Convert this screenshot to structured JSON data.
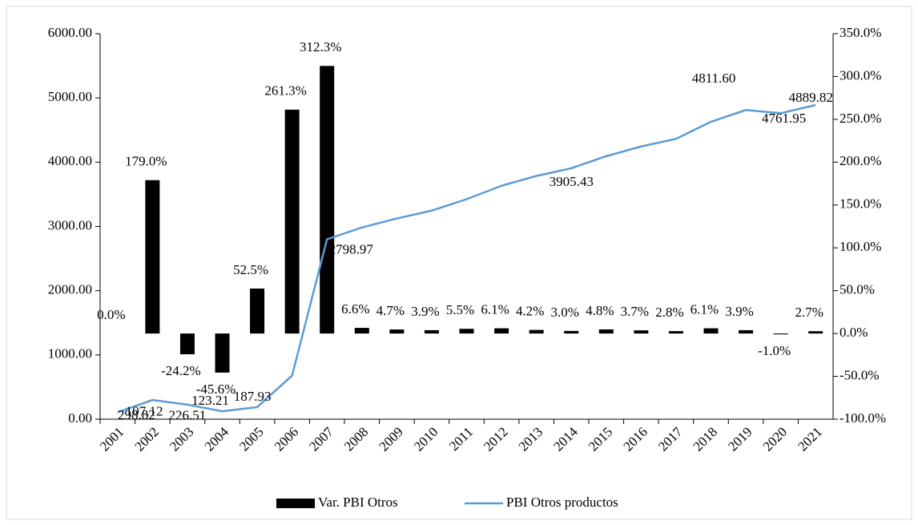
{
  "chart_data": {
    "type": "bar-line",
    "categories": [
      "2001",
      "2002",
      "2003",
      "2004",
      "2005",
      "2006",
      "2007",
      "2008",
      "2009",
      "2010",
      "2011",
      "2012",
      "2013",
      "2014",
      "2015",
      "2016",
      "2017",
      "2018",
      "2019",
      "2020",
      "2021"
    ],
    "series": [
      {
        "name": "Var.  PBI Otros",
        "type": "bar",
        "axis": "y2",
        "color": "#000000",
        "values": [
          0,
          179,
          -24.2,
          -45.6,
          52.5,
          261.3,
          312.3,
          6.6,
          4.7,
          3.9,
          5.5,
          6.1,
          4.2,
          3.0,
          4.8,
          3.7,
          2.8,
          6.1,
          3.9,
          -1.0,
          2.7
        ],
        "value_labels": [
          "0.0%",
          "179.0%",
          "-24.2%",
          "-45.6%",
          "52.5%",
          "261.3%",
          "312.3%",
          "6.6%",
          "4.7%",
          "3.9%",
          "5.5%",
          "6.1%",
          "4.2%",
          "3.0%",
          "4.8%",
          "3.7%",
          "2.8%",
          "6.1%",
          "3.9%",
          "-1.0%",
          "2.7%"
        ]
      },
      {
        "name": "PBI Otros productos",
        "type": "line",
        "axis": "y",
        "color": "#5b9bd5",
        "values": [
          107.12,
          298.82,
          226.51,
          123.21,
          187.93,
          679.0,
          2798.97,
          2984,
          3124,
          3246,
          3424,
          3633,
          3786,
          3905.43,
          4093,
          4244,
          4363,
          4629,
          4811.6,
          4761.95,
          4889.82
        ],
        "value_labels": [
          "107.12",
          "298.82",
          "226.51",
          "123.21",
          "187.93",
          null,
          "2798.97",
          null,
          null,
          null,
          null,
          null,
          null,
          "3905.43",
          null,
          null,
          null,
          null,
          "4811.60",
          "4761.95",
          "4889.82"
        ]
      }
    ],
    "ylim": [
      0,
      6000
    ],
    "yticks": [
      {
        "value": 0,
        "label": "0.00"
      },
      {
        "value": 1000,
        "label": "1000.00"
      },
      {
        "value": 2000,
        "label": "2000.00"
      },
      {
        "value": 3000,
        "label": "3000.00"
      },
      {
        "value": 4000,
        "label": "4000.00"
      },
      {
        "value": 5000,
        "label": "5000.00"
      },
      {
        "value": 6000,
        "label": "6000.00"
      }
    ],
    "y2lim": [
      -100,
      350
    ],
    "y2ticks": [
      {
        "value": -100,
        "label": "-100.0%"
      },
      {
        "value": -50,
        "label": "-50.0%"
      },
      {
        "value": 0,
        "label": "0.0%"
      },
      {
        "value": 50,
        "label": "50.0%"
      },
      {
        "value": 100,
        "label": "100.0%"
      },
      {
        "value": 150,
        "label": "150.0%"
      },
      {
        "value": 200,
        "label": "200.0%"
      },
      {
        "value": 250,
        "label": "250.0%"
      },
      {
        "value": 300,
        "label": "300.0%"
      },
      {
        "value": 350,
        "label": "350.0%"
      }
    ],
    "legend": "bottom"
  }
}
